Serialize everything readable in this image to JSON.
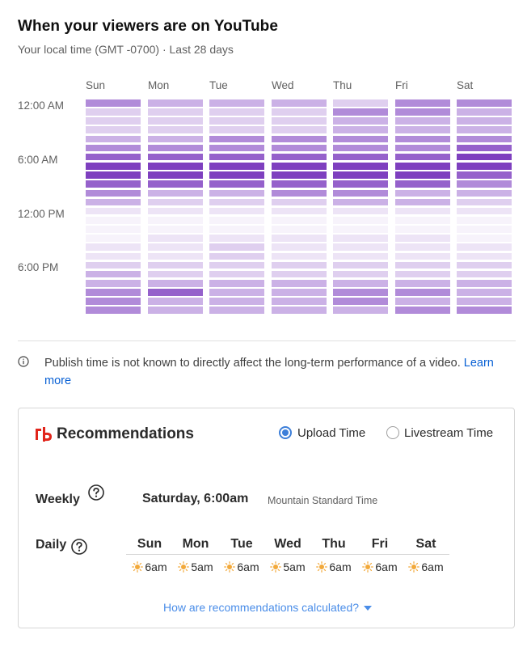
{
  "header": {
    "title": "When your viewers are on YouTube",
    "subtitle": "Your local time (GMT -0700) · Last 28 days"
  },
  "heatmap": {
    "days": [
      "Sun",
      "Mon",
      "Tue",
      "Wed",
      "Thu",
      "Fri",
      "Sat"
    ],
    "time_labels": [
      "12:00 AM",
      "6:00 AM",
      "12:00 PM",
      "6:00 PM"
    ],
    "palette": [
      "#f7f3fb",
      "#ede4f6",
      "#dfcfef",
      "#cbb1e6",
      "#b18bd9",
      "#9561cb",
      "#7e3fbf"
    ],
    "intensity_levels": [
      [
        4,
        2,
        2,
        2,
        3,
        4,
        5,
        6,
        6,
        5,
        4,
        3,
        1,
        0,
        0,
        0,
        1,
        1,
        2,
        3,
        3,
        4,
        4,
        4
      ],
      [
        3,
        2,
        2,
        2,
        3,
        4,
        5,
        6,
        6,
        5,
        3,
        2,
        1,
        0,
        0,
        1,
        1,
        1,
        2,
        2,
        3,
        5,
        3,
        3
      ],
      [
        3,
        2,
        2,
        2,
        4,
        4,
        5,
        6,
        6,
        5,
        3,
        2,
        1,
        0,
        0,
        1,
        2,
        2,
        2,
        2,
        3,
        3,
        3,
        3
      ],
      [
        3,
        2,
        2,
        2,
        4,
        4,
        5,
        6,
        6,
        5,
        4,
        2,
        1,
        0,
        0,
        1,
        1,
        1,
        2,
        2,
        3,
        3,
        3,
        3
      ],
      [
        2,
        4,
        3,
        3,
        4,
        4,
        5,
        6,
        6,
        5,
        4,
        3,
        1,
        0,
        0,
        1,
        1,
        1,
        2,
        2,
        3,
        4,
        4,
        3
      ],
      [
        4,
        4,
        3,
        3,
        4,
        4,
        5,
        6,
        6,
        5,
        3,
        3,
        1,
        0,
        0,
        1,
        1,
        1,
        2,
        2,
        3,
        4,
        3,
        4
      ],
      [
        4,
        3,
        3,
        3,
        4,
        5,
        6,
        6,
        5,
        4,
        3,
        2,
        1,
        0,
        0,
        0,
        1,
        1,
        2,
        2,
        3,
        3,
        3,
        4
      ]
    ]
  },
  "info": {
    "text": "Publish time is not known to directly affect the long-term performance of a video.",
    "link": "Learn more"
  },
  "recommendations": {
    "title": "Recommendations",
    "radio_options": [
      {
        "label": "Upload Time",
        "selected": true
      },
      {
        "label": "Livestream Time",
        "selected": false
      }
    ],
    "weekly_label": "Weekly",
    "weekly_value": "Saturday, 6:00am",
    "weekly_timezone": "Mountain Standard Time",
    "daily_label": "Daily",
    "daily": [
      {
        "day": "Sun",
        "time": "6am"
      },
      {
        "day": "Mon",
        "time": "5am"
      },
      {
        "day": "Tue",
        "time": "6am"
      },
      {
        "day": "Wed",
        "time": "5am"
      },
      {
        "day": "Thu",
        "time": "6am"
      },
      {
        "day": "Fri",
        "time": "6am"
      },
      {
        "day": "Sat",
        "time": "6am"
      }
    ],
    "how_link": "How are recommendations calculated?",
    "colors": {
      "accent": "#3d7fd9",
      "brand": "#e1251b",
      "sun": "#f2a93b"
    }
  }
}
